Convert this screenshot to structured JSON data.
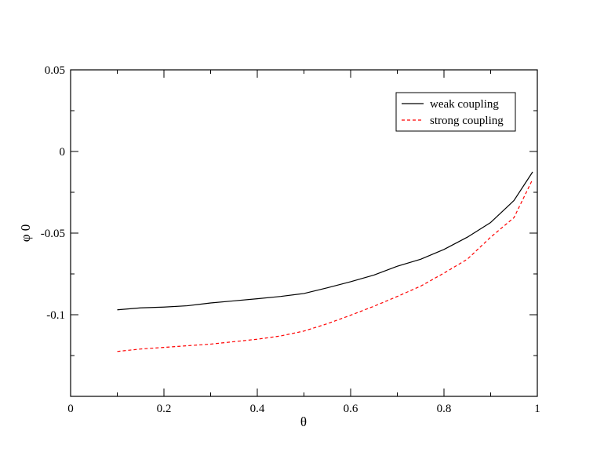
{
  "chart_data": {
    "type": "line",
    "xlabel": "θ",
    "ylabel": "φ 0",
    "xlim": [
      0,
      1
    ],
    "ylim": [
      -0.15,
      0.05
    ],
    "xticks": [
      {
        "value": 0,
        "label": "0"
      },
      {
        "value": 0.2,
        "label": "0.2"
      },
      {
        "value": 0.4,
        "label": "0.4"
      },
      {
        "value": 0.6,
        "label": "0.6"
      },
      {
        "value": 0.8,
        "label": "0.8"
      },
      {
        "value": 1,
        "label": "1"
      }
    ],
    "yticks": [
      {
        "value": 0.05,
        "label": "0.05"
      },
      {
        "value": 0,
        "label": "0"
      },
      {
        "value": -0.05,
        "label": "-0.05"
      },
      {
        "value": -0.1,
        "label": "-0.1"
      }
    ],
    "grid": false,
    "legend_position": "top-right",
    "series": [
      {
        "name": "weak coupling",
        "color": "#000000",
        "dash": "solid",
        "x": [
          0.1,
          0.15,
          0.2,
          0.25,
          0.3,
          0.35,
          0.4,
          0.45,
          0.5,
          0.55,
          0.6,
          0.65,
          0.7,
          0.75,
          0.8,
          0.85,
          0.9,
          0.95,
          0.99
        ],
        "y": [
          -0.097,
          -0.0958,
          -0.0953,
          -0.0945,
          -0.0928,
          -0.0915,
          -0.0902,
          -0.0888,
          -0.087,
          -0.0835,
          -0.0798,
          -0.0757,
          -0.0703,
          -0.066,
          -0.06,
          -0.0525,
          -0.0435,
          -0.03,
          -0.0125
        ]
      },
      {
        "name": "strong coupling",
        "color": "#ff0000",
        "dash": "dashed",
        "x": [
          0.1,
          0.15,
          0.2,
          0.25,
          0.3,
          0.35,
          0.4,
          0.45,
          0.5,
          0.55,
          0.6,
          0.65,
          0.7,
          0.75,
          0.8,
          0.85,
          0.9,
          0.95,
          0.99
        ],
        "y": [
          -0.1225,
          -0.121,
          -0.12,
          -0.119,
          -0.118,
          -0.1165,
          -0.115,
          -0.113,
          -0.11,
          -0.1055,
          -0.1003,
          -0.0948,
          -0.0888,
          -0.0825,
          -0.0745,
          -0.066,
          -0.0525,
          -0.0405,
          -0.017
        ]
      }
    ]
  }
}
